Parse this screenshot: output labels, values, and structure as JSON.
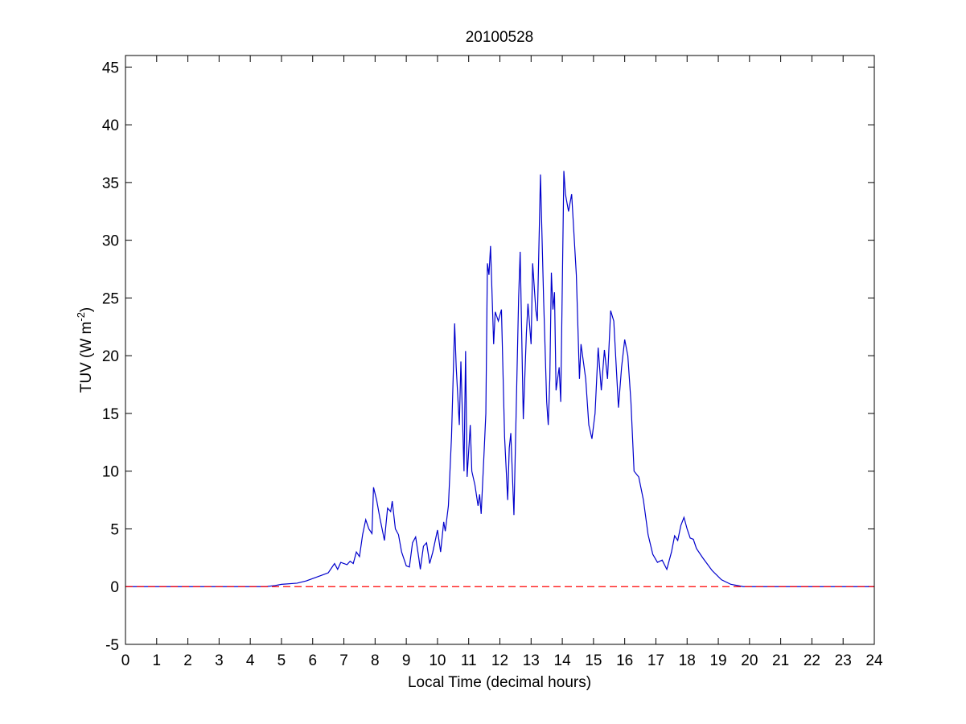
{
  "chart_data": {
    "type": "line",
    "title": "20100528",
    "x_label": "Local Time (decimal hours)",
    "y_label": {
      "text": "TUV (W m",
      "superscript": "-2",
      "suffix": ")"
    },
    "xlim": [
      0,
      24
    ],
    "ylim": [
      -5,
      46
    ],
    "xticks": [
      0,
      1,
      2,
      3,
      4,
      5,
      6,
      7,
      8,
      9,
      10,
      11,
      12,
      13,
      14,
      15,
      16,
      17,
      18,
      19,
      20,
      21,
      22,
      23,
      24
    ],
    "yticks": [
      -5,
      0,
      5,
      10,
      15,
      20,
      25,
      30,
      35,
      40,
      45
    ],
    "grid": false,
    "series": [
      {
        "color": "#0000cc",
        "linestyle": "solid",
        "x": [
          0,
          4.5,
          4.8,
          5,
          5.5,
          5.8,
          6,
          6.3,
          6.5,
          6.7,
          6.8,
          6.9,
          7.1,
          7.2,
          7.3,
          7.4,
          7.5,
          7.6,
          7.7,
          7.8,
          7.9,
          7.95,
          8.05,
          8.15,
          8.3,
          8.4,
          8.5,
          8.55,
          8.65,
          8.75,
          8.85,
          9,
          9.1,
          9.2,
          9.3,
          9.4,
          9.45,
          9.55,
          9.65,
          9.75,
          9.85,
          10,
          10.1,
          10.2,
          10.25,
          10.35,
          10.45,
          10.55,
          10.6,
          10.7,
          10.75,
          10.85,
          10.9,
          10.95,
          11.05,
          11.1,
          11.2,
          11.3,
          11.35,
          11.4,
          11.5,
          11.55,
          11.6,
          11.65,
          11.7,
          11.8,
          11.85,
          11.95,
          12.05,
          12.15,
          12.25,
          12.3,
          12.35,
          12.45,
          12.6,
          12.65,
          12.75,
          12.85,
          12.9,
          13,
          13.05,
          13.15,
          13.2,
          13.3,
          13.4,
          13.5,
          13.55,
          13.6,
          13.65,
          13.7,
          13.75,
          13.8,
          13.9,
          13.95,
          14.05,
          14.1,
          14.2,
          14.3,
          14.45,
          14.55,
          14.6,
          14.75,
          14.85,
          14.95,
          15.05,
          15.15,
          15.25,
          15.35,
          15.45,
          15.55,
          15.65,
          15.75,
          15.8,
          15.9,
          16,
          16.1,
          16.2,
          16.3,
          16.45,
          16.6,
          16.75,
          16.9,
          17.05,
          17.2,
          17.35,
          17.5,
          17.6,
          17.7,
          17.8,
          17.9,
          18,
          18.1,
          18.2,
          18.3,
          18.5,
          18.8,
          19.1,
          19.4,
          19.7,
          19.8,
          24
        ],
        "values": [
          0,
          0,
          0.1,
          0.2,
          0.3,
          0.5,
          0.7,
          1.0,
          1.2,
          2.0,
          1.5,
          2.1,
          1.9,
          2.2,
          2.0,
          3.0,
          2.6,
          4.5,
          5.8,
          5.0,
          4.6,
          8.6,
          7.5,
          6.0,
          4.0,
          6.8,
          6.5,
          7.4,
          5.0,
          4.5,
          3.0,
          1.8,
          1.7,
          3.8,
          4.3,
          2.5,
          1.5,
          3.5,
          3.8,
          2.0,
          3.0,
          4.9,
          3.0,
          5.6,
          4.8,
          7.0,
          13,
          22.8,
          19,
          14,
          19.5,
          10,
          20.4,
          9.5,
          14,
          10,
          8.8,
          7.0,
          8.0,
          6.3,
          12,
          15,
          28,
          27,
          29.5,
          21,
          23.8,
          23,
          24,
          13,
          7.5,
          12,
          13.3,
          6.2,
          25,
          29,
          14.5,
          22,
          24.5,
          21,
          28,
          24,
          23,
          35.7,
          25,
          16,
          14,
          18,
          27.2,
          24,
          25.5,
          17,
          19,
          16,
          36,
          34,
          32.5,
          34,
          27,
          18,
          21,
          18,
          14,
          12.8,
          15,
          20.7,
          17,
          20.5,
          18,
          23.9,
          23,
          18,
          15.5,
          19,
          21.4,
          20,
          16,
          10,
          9.5,
          7.5,
          4.5,
          2.8,
          2.1,
          2.3,
          1.5,
          3.0,
          4.4,
          4.0,
          5.3,
          6.0,
          5.0,
          4.2,
          4.1,
          3.3,
          2.5,
          1.4,
          0.6,
          0.2,
          0.05,
          0,
          0
        ]
      },
      {
        "color": "#ff0000",
        "linestyle": "dashed",
        "x": [
          0,
          24
        ],
        "values": [
          0,
          0
        ]
      }
    ]
  }
}
